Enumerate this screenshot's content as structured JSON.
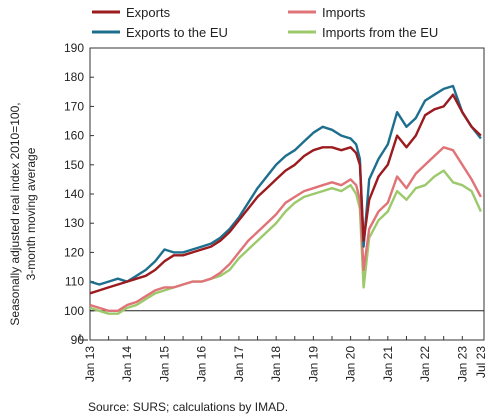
{
  "chart_data": {
    "type": "line",
    "ylabel_lines": [
      "Seasonally adjusted real index 2010=100,",
      "3-month moving average"
    ],
    "ylim": [
      90,
      190
    ],
    "yticks": [
      90,
      100,
      110,
      120,
      130,
      140,
      150,
      160,
      170,
      180,
      190
    ],
    "xlim": [
      2013.0,
      2023.583
    ],
    "xticks": [
      {
        "label": "Jan 13",
        "x": 2013.0
      },
      {
        "label": "Jan 14",
        "x": 2014.0
      },
      {
        "label": "Jan 15",
        "x": 2015.0
      },
      {
        "label": "Jan 16",
        "x": 2016.0
      },
      {
        "label": "Jan 17",
        "x": 2017.0
      },
      {
        "label": "Jan 18",
        "x": 2018.0
      },
      {
        "label": "Jan 19",
        "x": 2019.0
      },
      {
        "label": "Jan 20",
        "x": 2020.0
      },
      {
        "label": "Jan 21",
        "x": 2021.0
      },
      {
        "label": "Jan 22",
        "x": 2022.0
      },
      {
        "label": "Jan 23",
        "x": 2023.0
      },
      {
        "label": "Jul 23",
        "x": 2023.5
      }
    ],
    "reference_line": 100,
    "grid": false,
    "legend_position": "top",
    "source": "Source: SURS; calculations by IMAD.",
    "series": [
      {
        "name": "Exports",
        "color": "#9b1b1f",
        "points": [
          [
            2013.0,
            106
          ],
          [
            2013.25,
            107
          ],
          [
            2013.5,
            108
          ],
          [
            2013.75,
            109
          ],
          [
            2014.0,
            110
          ],
          [
            2014.25,
            111
          ],
          [
            2014.5,
            112
          ],
          [
            2014.75,
            114
          ],
          [
            2015.0,
            117
          ],
          [
            2015.25,
            119
          ],
          [
            2015.5,
            119
          ],
          [
            2015.75,
            120
          ],
          [
            2016.0,
            121
          ],
          [
            2016.25,
            122
          ],
          [
            2016.5,
            124
          ],
          [
            2016.75,
            127
          ],
          [
            2017.0,
            131
          ],
          [
            2017.25,
            135
          ],
          [
            2017.5,
            139
          ],
          [
            2017.75,
            142
          ],
          [
            2018.0,
            145
          ],
          [
            2018.25,
            148
          ],
          [
            2018.5,
            150
          ],
          [
            2018.75,
            153
          ],
          [
            2019.0,
            155
          ],
          [
            2019.25,
            156
          ],
          [
            2019.5,
            156
          ],
          [
            2019.75,
            155
          ],
          [
            2020.0,
            156
          ],
          [
            2020.15,
            154
          ],
          [
            2020.25,
            150
          ],
          [
            2020.35,
            124
          ],
          [
            2020.5,
            138
          ],
          [
            2020.75,
            146
          ],
          [
            2021.0,
            150
          ],
          [
            2021.25,
            160
          ],
          [
            2021.5,
            156
          ],
          [
            2021.75,
            160
          ],
          [
            2022.0,
            167
          ],
          [
            2022.25,
            169
          ],
          [
            2022.5,
            170
          ],
          [
            2022.75,
            174
          ],
          [
            2023.0,
            168
          ],
          [
            2023.25,
            163
          ],
          [
            2023.5,
            160
          ]
        ]
      },
      {
        "name": "Imports",
        "color": "#e07377",
        "points": [
          [
            2013.0,
            102
          ],
          [
            2013.25,
            101
          ],
          [
            2013.5,
            100
          ],
          [
            2013.75,
            100
          ],
          [
            2014.0,
            102
          ],
          [
            2014.25,
            103
          ],
          [
            2014.5,
            105
          ],
          [
            2014.75,
            107
          ],
          [
            2015.0,
            108
          ],
          [
            2015.25,
            108
          ],
          [
            2015.5,
            109
          ],
          [
            2015.75,
            110
          ],
          [
            2016.0,
            110
          ],
          [
            2016.25,
            111
          ],
          [
            2016.5,
            113
          ],
          [
            2016.75,
            116
          ],
          [
            2017.0,
            120
          ],
          [
            2017.25,
            124
          ],
          [
            2017.5,
            127
          ],
          [
            2017.75,
            130
          ],
          [
            2018.0,
            133
          ],
          [
            2018.25,
            137
          ],
          [
            2018.5,
            139
          ],
          [
            2018.75,
            141
          ],
          [
            2019.0,
            142
          ],
          [
            2019.25,
            143
          ],
          [
            2019.5,
            144
          ],
          [
            2019.75,
            143
          ],
          [
            2020.0,
            145
          ],
          [
            2020.15,
            143
          ],
          [
            2020.25,
            138
          ],
          [
            2020.35,
            114
          ],
          [
            2020.5,
            128
          ],
          [
            2020.75,
            134
          ],
          [
            2021.0,
            137
          ],
          [
            2021.25,
            146
          ],
          [
            2021.5,
            142
          ],
          [
            2021.75,
            147
          ],
          [
            2022.0,
            150
          ],
          [
            2022.25,
            153
          ],
          [
            2022.5,
            156
          ],
          [
            2022.75,
            155
          ],
          [
            2023.0,
            150
          ],
          [
            2023.25,
            145
          ],
          [
            2023.5,
            139
          ]
        ]
      },
      {
        "name": "Exports to the EU",
        "color": "#1e6f8e",
        "points": [
          [
            2013.0,
            110
          ],
          [
            2013.25,
            109
          ],
          [
            2013.5,
            110
          ],
          [
            2013.75,
            111
          ],
          [
            2014.0,
            110
          ],
          [
            2014.25,
            112
          ],
          [
            2014.5,
            114
          ],
          [
            2014.75,
            117
          ],
          [
            2015.0,
            121
          ],
          [
            2015.25,
            120
          ],
          [
            2015.5,
            120
          ],
          [
            2015.75,
            121
          ],
          [
            2016.0,
            122
          ],
          [
            2016.25,
            123
          ],
          [
            2016.5,
            125
          ],
          [
            2016.75,
            128
          ],
          [
            2017.0,
            132
          ],
          [
            2017.25,
            137
          ],
          [
            2017.5,
            142
          ],
          [
            2017.75,
            146
          ],
          [
            2018.0,
            150
          ],
          [
            2018.25,
            153
          ],
          [
            2018.5,
            155
          ],
          [
            2018.75,
            158
          ],
          [
            2019.0,
            161
          ],
          [
            2019.25,
            163
          ],
          [
            2019.5,
            162
          ],
          [
            2019.75,
            160
          ],
          [
            2020.0,
            159
          ],
          [
            2020.15,
            157
          ],
          [
            2020.25,
            152
          ],
          [
            2020.35,
            122
          ],
          [
            2020.5,
            145
          ],
          [
            2020.75,
            152
          ],
          [
            2021.0,
            157
          ],
          [
            2021.25,
            168
          ],
          [
            2021.5,
            163
          ],
          [
            2021.75,
            166
          ],
          [
            2022.0,
            172
          ],
          [
            2022.25,
            174
          ],
          [
            2022.5,
            176
          ],
          [
            2022.75,
            177
          ],
          [
            2023.0,
            168
          ],
          [
            2023.25,
            163
          ],
          [
            2023.5,
            159
          ]
        ]
      },
      {
        "name": "Imports from the EU",
        "color": "#9cc96b",
        "points": [
          [
            2013.0,
            101
          ],
          [
            2013.25,
            100
          ],
          [
            2013.5,
            99
          ],
          [
            2013.75,
            99
          ],
          [
            2014.0,
            101
          ],
          [
            2014.25,
            102
          ],
          [
            2014.5,
            104
          ],
          [
            2014.75,
            106
          ],
          [
            2015.0,
            107
          ],
          [
            2015.25,
            108
          ],
          [
            2015.5,
            109
          ],
          [
            2015.75,
            110
          ],
          [
            2016.0,
            110
          ],
          [
            2016.25,
            111
          ],
          [
            2016.5,
            112
          ],
          [
            2016.75,
            114
          ],
          [
            2017.0,
            118
          ],
          [
            2017.25,
            121
          ],
          [
            2017.5,
            124
          ],
          [
            2017.75,
            127
          ],
          [
            2018.0,
            130
          ],
          [
            2018.25,
            134
          ],
          [
            2018.5,
            137
          ],
          [
            2018.75,
            139
          ],
          [
            2019.0,
            140
          ],
          [
            2019.25,
            141
          ],
          [
            2019.5,
            142
          ],
          [
            2019.75,
            141
          ],
          [
            2020.0,
            143
          ],
          [
            2020.15,
            140
          ],
          [
            2020.25,
            135
          ],
          [
            2020.35,
            108
          ],
          [
            2020.5,
            125
          ],
          [
            2020.75,
            131
          ],
          [
            2021.0,
            134
          ],
          [
            2021.25,
            141
          ],
          [
            2021.5,
            138
          ],
          [
            2021.75,
            142
          ],
          [
            2022.0,
            143
          ],
          [
            2022.25,
            146
          ],
          [
            2022.5,
            148
          ],
          [
            2022.75,
            144
          ],
          [
            2023.0,
            143
          ],
          [
            2023.25,
            141
          ],
          [
            2023.5,
            134
          ]
        ]
      }
    ]
  }
}
